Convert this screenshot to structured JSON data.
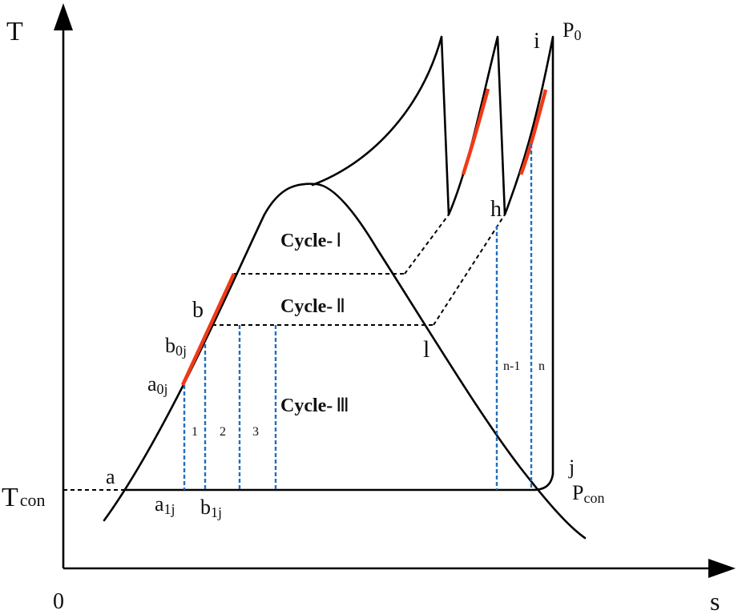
{
  "axes": {
    "y_label": "T",
    "x_label": "s",
    "origin_label": "0",
    "tcon_main": "T",
    "tcon_sub": "con"
  },
  "points": {
    "a": "a",
    "a0j_main": "a",
    "a0j_sub": "0j",
    "b": "b",
    "b0j_main": "b",
    "b0j_sub": "0j",
    "a1j_main": "a",
    "a1j_sub": "1j",
    "b1j_main": "b",
    "b1j_sub": "1j",
    "l": "l",
    "h": "h",
    "i": "i",
    "j": "j"
  },
  "pressures": {
    "p0_main": "P",
    "p0_sub": "0",
    "pcon_main": "P",
    "pcon_sub": "con"
  },
  "cycles": {
    "cycle1_word": "Cycle-",
    "cycle1_numeral": "Ⅰ",
    "cycle2_word": "Cycle-",
    "cycle2_numeral": "Ⅱ",
    "cycle3_word": "Cycle-",
    "cycle3_numeral": "Ⅲ"
  },
  "segments": {
    "s1": "1",
    "s2": "2",
    "s3": "3",
    "sn1": "n-1",
    "sn": "n"
  },
  "colors": {
    "heat_addition": "#f03a17",
    "isentropic_lines": "#1f6fbf",
    "lines": "#000000"
  }
}
